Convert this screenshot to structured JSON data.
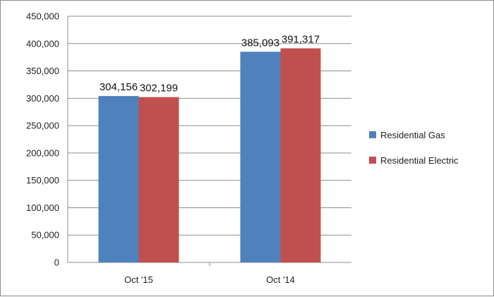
{
  "chart_data": {
    "type": "bar",
    "categories": [
      "Oct '15",
      "Oct '14"
    ],
    "series": [
      {
        "name": "Residential Gas",
        "values": [
          304156,
          385093
        ],
        "color": "#4f81bd"
      },
      {
        "name": "Residential Electric",
        "values": [
          302199,
          391317
        ],
        "color": "#c0504d"
      }
    ],
    "ylim": [
      0,
      450000
    ],
    "y_ticks": [
      0,
      50000,
      100000,
      150000,
      200000,
      250000,
      300000,
      350000,
      400000,
      450000
    ],
    "grid": true,
    "legend": "right",
    "data_labels": true
  }
}
